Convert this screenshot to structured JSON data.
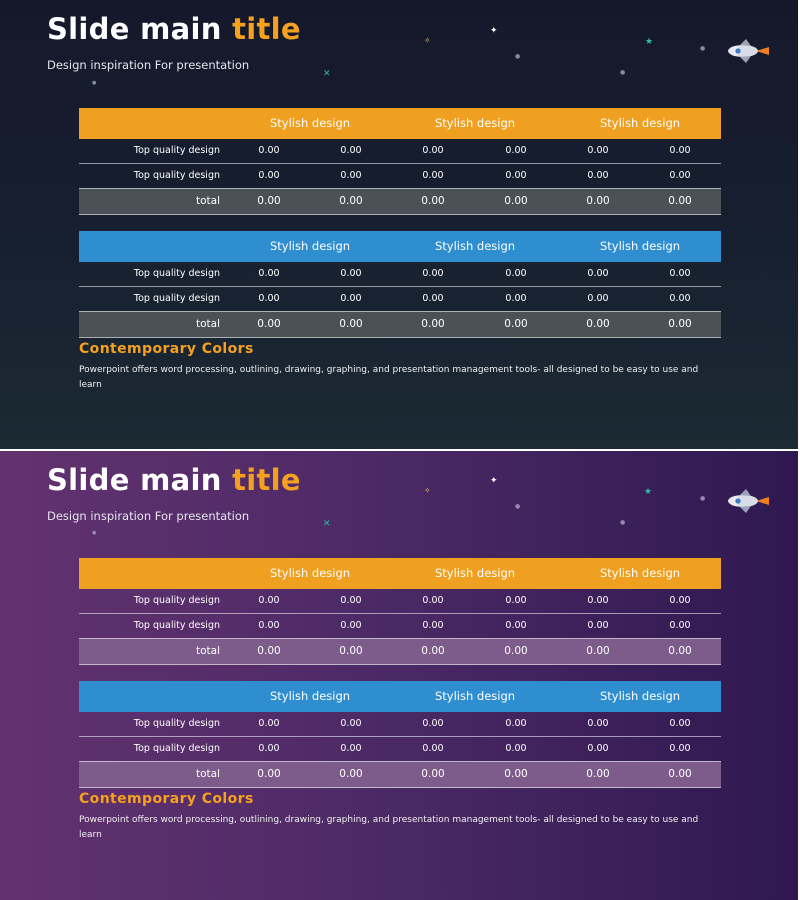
{
  "slides": [
    {
      "theme": "dark",
      "title_main": "Slide main",
      "title_accent": "title",
      "subtitle": "Design inspiration For presentation",
      "tables": [
        {
          "header_color": "#f0a020",
          "headers": [
            "Stylish design",
            "Stylish design",
            "Stylish design"
          ],
          "rows": [
            {
              "label": "Top quality design",
              "values": [
                "0.00",
                "0.00",
                "0.00",
                "0.00",
                "0.00",
                "0.00"
              ]
            },
            {
              "label": "Top quality design",
              "values": [
                "0.00",
                "0.00",
                "0.00",
                "0.00",
                "0.00",
                "0.00"
              ]
            }
          ],
          "total": {
            "label": "total",
            "values": [
              "0.00",
              "0.00",
              "0.00",
              "0.00",
              "0.00",
              "0.00"
            ]
          }
        },
        {
          "header_color": "#2f8ed0",
          "headers": [
            "Stylish design",
            "Stylish design",
            "Stylish design"
          ],
          "rows": [
            {
              "label": "Top quality design",
              "values": [
                "0.00",
                "0.00",
                "0.00",
                "0.00",
                "0.00",
                "0.00"
              ]
            },
            {
              "label": "Top quality design",
              "values": [
                "0.00",
                "0.00",
                "0.00",
                "0.00",
                "0.00",
                "0.00"
              ]
            }
          ],
          "total": {
            "label": "total",
            "values": [
              "0.00",
              "0.00",
              "0.00",
              "0.00",
              "0.00",
              "0.00"
            ]
          }
        }
      ],
      "section_heading": "Contemporary  Colors",
      "paragraph": "Powerpoint offers word processing, outlining, drawing, graphing, and presentation management tools- all designed to be easy to use and learn"
    },
    {
      "theme": "purple",
      "title_main": "Slide main",
      "title_accent": "title",
      "subtitle": "Design inspiration For presentation",
      "tables": [
        {
          "header_color": "#f0a020",
          "headers": [
            "Stylish design",
            "Stylish design",
            "Stylish design"
          ],
          "rows": [
            {
              "label": "Top quality design",
              "values": [
                "0.00",
                "0.00",
                "0.00",
                "0.00",
                "0.00",
                "0.00"
              ]
            },
            {
              "label": "Top quality design",
              "values": [
                "0.00",
                "0.00",
                "0.00",
                "0.00",
                "0.00",
                "0.00"
              ]
            }
          ],
          "total": {
            "label": "total",
            "values": [
              "0.00",
              "0.00",
              "0.00",
              "0.00",
              "0.00",
              "0.00"
            ]
          }
        },
        {
          "header_color": "#2f8ed0",
          "headers": [
            "Stylish design",
            "Stylish design",
            "Stylish design"
          ],
          "rows": [
            {
              "label": "Top quality design",
              "values": [
                "0.00",
                "0.00",
                "0.00",
                "0.00",
                "0.00",
                "0.00"
              ]
            },
            {
              "label": "Top quality design",
              "values": [
                "0.00",
                "0.00",
                "0.00",
                "0.00",
                "0.00",
                "0.00"
              ]
            }
          ],
          "total": {
            "label": "total",
            "values": [
              "0.00",
              "0.00",
              "0.00",
              "0.00",
              "0.00",
              "0.00"
            ]
          }
        }
      ],
      "section_heading": "Contemporary  Colors",
      "paragraph": "Powerpoint offers word processing, outlining, drawing, graphing, and presentation management tools- all designed to be easy to use and learn"
    }
  ],
  "colors": {
    "accent_orange": "#f5a11f",
    "header_orange": "#f0a020",
    "header_blue": "#2f8ed0",
    "dark_bg": "#161b2c",
    "purple_bg": "#4d2a66"
  },
  "icons": [
    "star-icon",
    "sparkle-icon",
    "rocket-icon"
  ]
}
